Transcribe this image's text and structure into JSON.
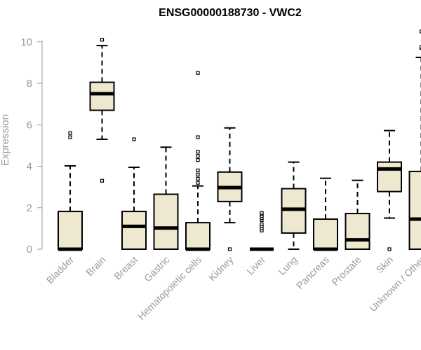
{
  "chart_data": {
    "type": "box",
    "title": "ENSG00000188730 - VWC2",
    "ylabel": "Expression",
    "xlabel": "",
    "ylim": [
      0,
      10.6
    ],
    "yticks": [
      0,
      2,
      4,
      6,
      8,
      10
    ],
    "grid": false,
    "colors": {
      "box_fill": "#efe8d0",
      "stroke": "#000000",
      "axis_text": "#9a9a9a"
    },
    "categories": [
      "Bladder",
      "Brain",
      "Breast",
      "Gastric",
      "Hematopoietic cells",
      "Kidney",
      "Liver",
      "Lung",
      "Pancreas",
      "Prostate",
      "Skin",
      "Unknown / Other"
    ],
    "boxes": [
      {
        "label": "Bladder",
        "whisker_low": 0,
        "q1": 0,
        "median": 0,
        "q3": 1.82,
        "whisker_high": 4.02,
        "outliers": [
          5.4,
          5.6
        ]
      },
      {
        "label": "Brain",
        "whisker_low": 5.3,
        "q1": 6.7,
        "median": 7.5,
        "q3": 8.05,
        "whisker_high": 9.82,
        "outliers": [
          3.3,
          10.1
        ]
      },
      {
        "label": "Breast",
        "whisker_low": 0,
        "q1": 0,
        "median": 1.1,
        "q3": 1.82,
        "whisker_high": 3.95,
        "outliers": [
          5.3
        ]
      },
      {
        "label": "Gastric",
        "whisker_low": 0,
        "q1": 0,
        "median": 1.02,
        "q3": 2.65,
        "whisker_high": 4.92,
        "outliers": []
      },
      {
        "label": "Hematopoietic cells",
        "whisker_low": 0,
        "q1": 0,
        "median": 0,
        "q3": 1.28,
        "whisker_high": 3.05,
        "outliers": [
          3.2,
          3.4,
          3.6,
          3.8,
          4.3,
          4.5,
          4.7,
          5.4,
          8.5
        ]
      },
      {
        "label": "Kidney",
        "whisker_low": 1.28,
        "q1": 2.3,
        "median": 2.97,
        "q3": 3.72,
        "whisker_high": 5.85,
        "outliers": [
          0
        ]
      },
      {
        "label": "Liver",
        "whisker_low": 0,
        "q1": 0,
        "median": 0,
        "q3": 0,
        "whisker_high": 0,
        "outliers": [
          0.9,
          1.0,
          1.1,
          1.2,
          1.4,
          1.5,
          1.6,
          1.7,
          1.75
        ]
      },
      {
        "label": "Lung",
        "whisker_low": 0,
        "q1": 0.78,
        "median": 1.93,
        "q3": 2.92,
        "whisker_high": 4.2,
        "outliers": []
      },
      {
        "label": "Pancreas",
        "whisker_low": 0,
        "q1": 0,
        "median": 0,
        "q3": 1.45,
        "whisker_high": 3.42,
        "outliers": []
      },
      {
        "label": "Prostate",
        "whisker_low": 0,
        "q1": 0,
        "median": 0.45,
        "q3": 1.72,
        "whisker_high": 3.32,
        "outliers": []
      },
      {
        "label": "Skin",
        "whisker_low": 1.5,
        "q1": 2.78,
        "median": 3.87,
        "q3": 4.2,
        "whisker_high": 5.72,
        "outliers": [
          0
        ]
      },
      {
        "label": "Unknown / Other",
        "whisker_low": 0,
        "q1": 0,
        "median": 1.45,
        "q3": 3.75,
        "whisker_high": 9.25,
        "outliers": [
          9.7,
          9.75,
          10.5
        ]
      }
    ]
  }
}
